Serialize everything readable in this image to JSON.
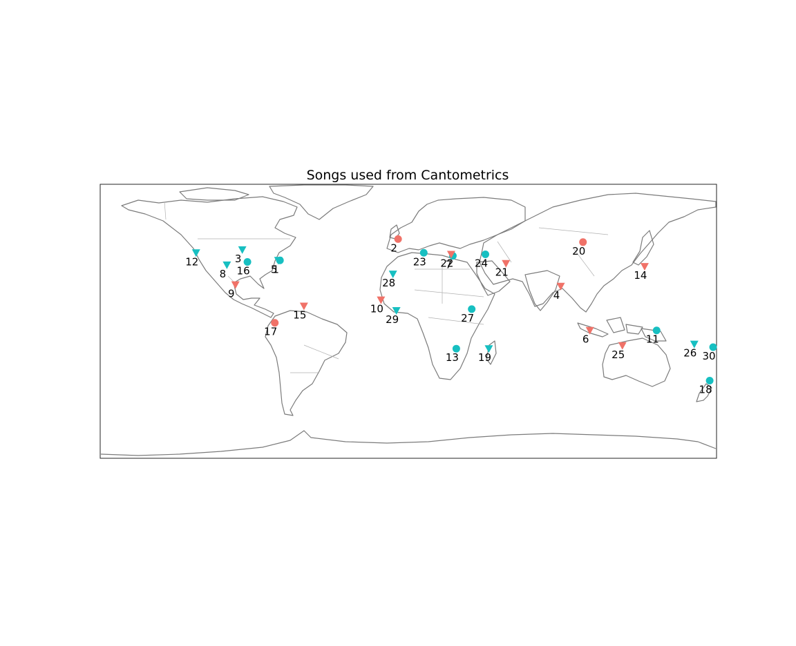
{
  "title": "Songs used from Cantometrics",
  "projection": "plate-carree",
  "extent": {
    "lon": [
      -180,
      180
    ],
    "lat": [
      -90,
      90
    ]
  },
  "colors": {
    "coast": "#7a7a7a",
    "border": "#b0b0b0",
    "teal": "#17bfc1",
    "salmon": "#f07268",
    "frame": "#222222"
  },
  "legend": "none",
  "markers": [
    {
      "id": "1",
      "lon": -75,
      "lat": 40,
      "shape": "circle",
      "color": "teal"
    },
    {
      "id": "2",
      "lon": -6,
      "lat": 54,
      "shape": "circle",
      "color": "salmon"
    },
    {
      "id": "3",
      "lon": -97,
      "lat": 47,
      "shape": "triangle",
      "color": "teal"
    },
    {
      "id": "4",
      "lon": 89,
      "lat": 23,
      "shape": "triangle",
      "color": "salmon"
    },
    {
      "id": "5",
      "lon": -76,
      "lat": 40,
      "shape": "triangle",
      "color": "teal"
    },
    {
      "id": "6",
      "lon": 106,
      "lat": -6,
      "shape": "triangle",
      "color": "salmon"
    },
    {
      "id": "7",
      "lon": 26,
      "lat": 43,
      "shape": "circle",
      "color": "teal"
    },
    {
      "id": "8",
      "lon": -106,
      "lat": 37,
      "shape": "triangle",
      "color": "teal"
    },
    {
      "id": "9",
      "lon": -101,
      "lat": 24,
      "shape": "triangle",
      "color": "salmon"
    },
    {
      "id": "10",
      "lon": -16,
      "lat": 14,
      "shape": "triangle",
      "color": "salmon"
    },
    {
      "id": "11",
      "lon": 145,
      "lat": -6,
      "shape": "circle",
      "color": "teal"
    },
    {
      "id": "12",
      "lon": -124,
      "lat": 45,
      "shape": "triangle",
      "color": "teal"
    },
    {
      "id": "13",
      "lon": 28,
      "lat": -18,
      "shape": "circle",
      "color": "teal"
    },
    {
      "id": "14",
      "lon": 138,
      "lat": 36,
      "shape": "triangle",
      "color": "salmon"
    },
    {
      "id": "15",
      "lon": -61,
      "lat": 10,
      "shape": "triangle",
      "color": "salmon"
    },
    {
      "id": "16",
      "lon": -94,
      "lat": 39,
      "shape": "circle",
      "color": "teal"
    },
    {
      "id": "17",
      "lon": -78,
      "lat": -1,
      "shape": "circle",
      "color": "salmon"
    },
    {
      "id": "18",
      "lon": 176,
      "lat": -39,
      "shape": "circle",
      "color": "teal"
    },
    {
      "id": "19",
      "lon": 47,
      "lat": -18,
      "shape": "triangle",
      "color": "teal"
    },
    {
      "id": "20",
      "lon": 102,
      "lat": 52,
      "shape": "circle",
      "color": "salmon"
    },
    {
      "id": "21",
      "lon": 57,
      "lat": 38,
      "shape": "triangle",
      "color": "salmon"
    },
    {
      "id": "22",
      "lon": 25,
      "lat": 44,
      "shape": "triangle",
      "color": "salmon"
    },
    {
      "id": "23",
      "lon": 9,
      "lat": 45,
      "shape": "circle",
      "color": "teal"
    },
    {
      "id": "24",
      "lon": 45,
      "lat": 44,
      "shape": "circle",
      "color": "teal"
    },
    {
      "id": "25",
      "lon": 125,
      "lat": -16,
      "shape": "triangle",
      "color": "salmon"
    },
    {
      "id": "26",
      "lon": 167,
      "lat": -15,
      "shape": "triangle",
      "color": "teal"
    },
    {
      "id": "27",
      "lon": 37,
      "lat": 8,
      "shape": "circle",
      "color": "teal"
    },
    {
      "id": "28",
      "lon": -9,
      "lat": 31,
      "shape": "triangle",
      "color": "teal"
    },
    {
      "id": "29",
      "lon": -7,
      "lat": 7,
      "shape": "triangle",
      "color": "teal"
    },
    {
      "id": "30",
      "lon": 178,
      "lat": -17,
      "shape": "circle",
      "color": "teal"
    }
  ]
}
